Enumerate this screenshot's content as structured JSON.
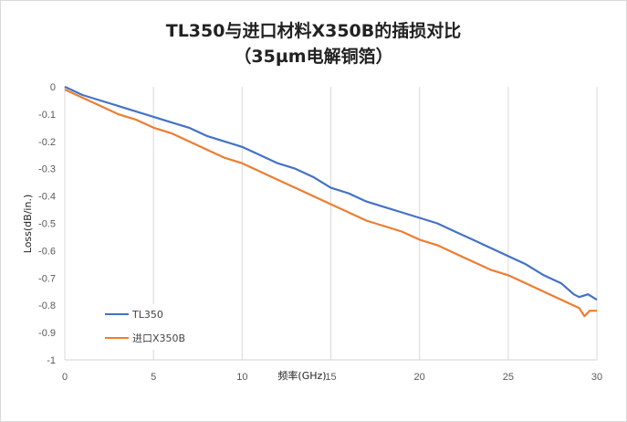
{
  "chart_data": {
    "type": "line",
    "title": "TL350与进口材料X350B的插损对比",
    "subtitle": "（35µm电解铜箔）",
    "xlabel": "频率(GHz)",
    "ylabel": "Loss(dB/in.)",
    "xlim": [
      0,
      30
    ],
    "ylim": [
      -1,
      0
    ],
    "x_ticks": [
      "0",
      "5",
      "10",
      "15",
      "20",
      "25",
      "30"
    ],
    "y_ticks": [
      "0",
      "-0.1",
      "-0.2",
      "-0.3",
      "-0.4",
      "-0.5",
      "-0.6",
      "-0.7",
      "-0.8",
      "-0.9",
      "-1"
    ],
    "grid": "vertical",
    "legend_position": "bottom-left",
    "series": [
      {
        "name": "TL350",
        "color": "#4472c4",
        "x": [
          0,
          1,
          2,
          3,
          4,
          5,
          6,
          7,
          8,
          9,
          10,
          11,
          12,
          13,
          14,
          15,
          16,
          17,
          18,
          19,
          20,
          21,
          22,
          23,
          24,
          25,
          26,
          27,
          28,
          28.7,
          29,
          29.5,
          30
        ],
        "y": [
          0,
          -0.03,
          -0.05,
          -0.07,
          -0.09,
          -0.11,
          -0.13,
          -0.15,
          -0.18,
          -0.2,
          -0.22,
          -0.25,
          -0.28,
          -0.3,
          -0.33,
          -0.37,
          -0.39,
          -0.42,
          -0.44,
          -0.46,
          -0.48,
          -0.5,
          -0.53,
          -0.56,
          -0.59,
          -0.62,
          -0.65,
          -0.69,
          -0.72,
          -0.76,
          -0.77,
          -0.76,
          -0.78
        ]
      },
      {
        "name": "进口X350B",
        "color": "#ed7d31",
        "x": [
          0,
          1,
          2,
          3,
          4,
          5,
          6,
          7,
          8,
          9,
          10,
          11,
          12,
          13,
          14,
          15,
          16,
          17,
          18,
          19,
          20,
          21,
          22,
          23,
          24,
          25,
          26,
          27,
          28,
          29,
          29.3,
          29.6,
          30
        ],
        "y": [
          -0.01,
          -0.04,
          -0.07,
          -0.1,
          -0.12,
          -0.15,
          -0.17,
          -0.2,
          -0.23,
          -0.26,
          -0.28,
          -0.31,
          -0.34,
          -0.37,
          -0.4,
          -0.43,
          -0.46,
          -0.49,
          -0.51,
          -0.53,
          -0.56,
          -0.58,
          -0.61,
          -0.64,
          -0.67,
          -0.69,
          -0.72,
          -0.75,
          -0.78,
          -0.81,
          -0.84,
          -0.82,
          -0.82
        ]
      }
    ]
  }
}
